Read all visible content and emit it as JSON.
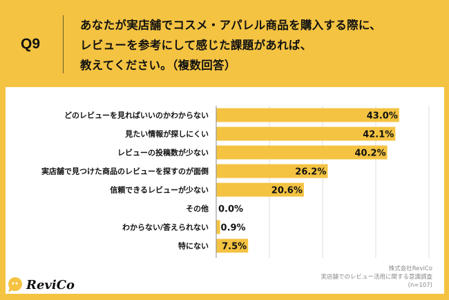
{
  "header": {
    "question_no": "Q9",
    "title_lines": [
      "あなたが実店舗でコスメ・アパレル商品を購入する際に、",
      "レビューを参考にして感じた課題があれば、",
      "教えてください。（複数回答）"
    ]
  },
  "chart_data": {
    "type": "bar",
    "orientation": "horizontal",
    "categories": [
      "どのレビューを見ればいいのかわからない",
      "見たい情報が探しにくい",
      "レビューの投稿数が少ない",
      "実店舗で見つけた商品のレビューを探すのが面倒",
      "信頼できるレビューが少ない",
      "その他",
      "わからない/答えられない",
      "特にない"
    ],
    "values": [
      43.0,
      42.1,
      40.2,
      26.2,
      20.6,
      0.0,
      0.9,
      7.5
    ],
    "data_labels": [
      "43.0%",
      "42.1%",
      "40.2%",
      "26.2%",
      "20.6%",
      "0.0%",
      "0.9%",
      "7.5%"
    ],
    "xlim": [
      0,
      50
    ],
    "grid": true,
    "bar_color": "#F4C342"
  },
  "footer": {
    "company": "株式会社ReviCo",
    "survey": "実店舗でのレビュー活用に関する意識調査",
    "sample": "(n=107)"
  },
  "logo": {
    "text": "ReviCo",
    "color": "#F4C342"
  }
}
